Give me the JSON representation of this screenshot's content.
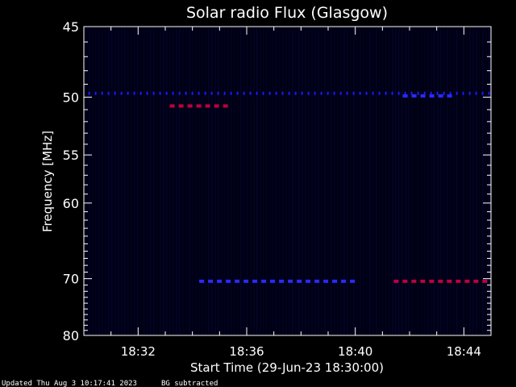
{
  "chart_data": {
    "type": "heatmap",
    "title": "Solar radio Flux (Glasgow)",
    "xlabel": "Start Time (29-Jun-23 18:30:00)",
    "ylabel": "Frequency [MHz]",
    "x_range_minutes": [
      18.5,
      18.75
    ],
    "x_ticks": [
      "18:32",
      "18:36",
      "18:40",
      "18:44"
    ],
    "y_ticks": [
      45,
      50,
      55,
      60,
      70,
      80
    ],
    "ylim": [
      45,
      80
    ],
    "y_scale": "reciprocal",
    "colors": {
      "background": "#000000",
      "plot_background": "#000014",
      "axes": "#ffffff",
      "low": "#1a1aff",
      "high": "#c00040"
    },
    "bands": [
      {
        "freq_mhz": 49.7,
        "start": "18:30:10",
        "end": "18:44:55",
        "level": "low"
      },
      {
        "freq_mhz": 50.7,
        "start": "18:33:10",
        "end": "18:35:10",
        "level": "high"
      },
      {
        "freq_mhz": 49.9,
        "start": "18:41:45",
        "end": "18:43:40",
        "level": "mid"
      },
      {
        "freq_mhz": 70.4,
        "start": "18:34:15",
        "end": "18:40:05",
        "level": "mid"
      },
      {
        "freq_mhz": 70.4,
        "start": "18:41:25",
        "end": "18:44:55",
        "level": "high"
      }
    ],
    "grid": false
  },
  "footer": {
    "updated": "Updated Thu Aug  3 10:17:41 2023",
    "note": "BG subtracted"
  }
}
